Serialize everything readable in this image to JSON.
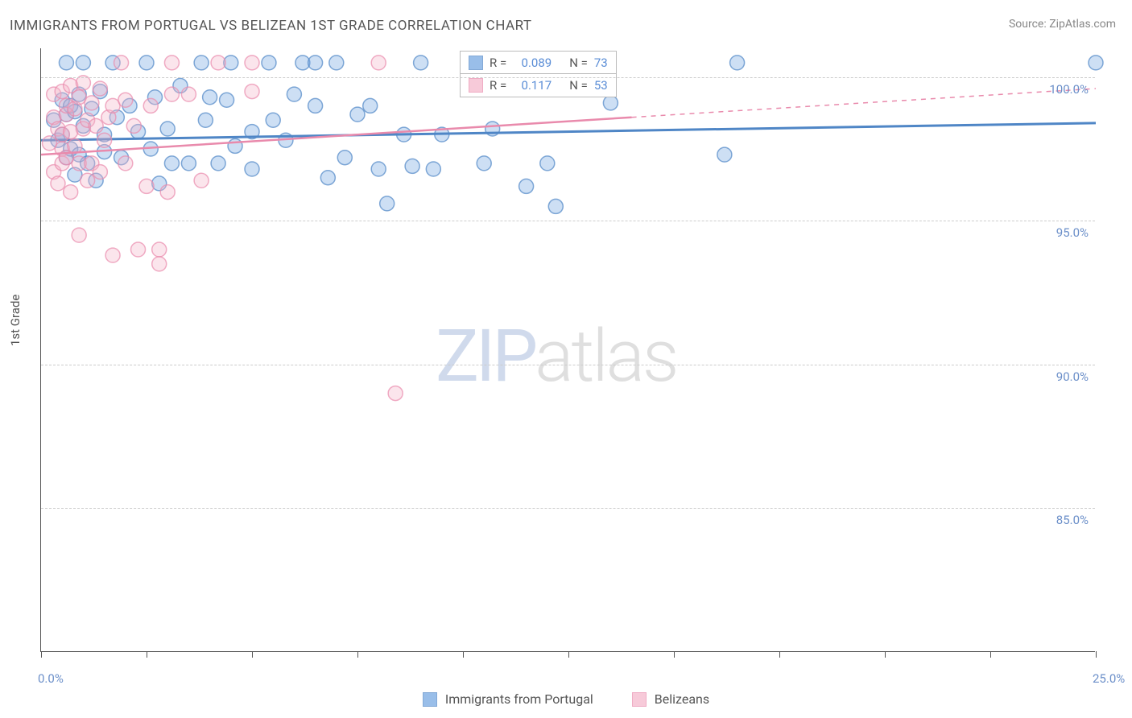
{
  "title": "IMMIGRANTS FROM PORTUGAL VS BELIZEAN 1ST GRADE CORRELATION CHART",
  "source": "Source: ZipAtlas.com",
  "y_axis_label": "1st Grade",
  "watermark": {
    "zip": "ZIP",
    "atlas": "atlas"
  },
  "chart": {
    "type": "scatter",
    "xlim": [
      0,
      25
    ],
    "ylim": [
      80,
      101
    ],
    "x_ticks": [
      0,
      2.5,
      5,
      7.5,
      10,
      12.5,
      15,
      17.5,
      20,
      22.5,
      25
    ],
    "x_tick_labels": {
      "0": "0.0%",
      "25": "25.0%"
    },
    "y_gridlines": [
      85,
      90,
      95,
      100
    ],
    "y_tick_labels": {
      "85": "85.0%",
      "90": "90.0%",
      "95": "95.0%",
      "100": "100.0%"
    },
    "grid_color": "#cccccc",
    "axis_color": "#555555",
    "background_color": "#ffffff",
    "marker_radius": 9,
    "marker_fill_opacity": 0.35,
    "marker_stroke_opacity": 0.7,
    "marker_stroke_width": 1.5,
    "series": [
      {
        "name": "Immigrants from Portugal",
        "color": "#6fa3e0",
        "stroke": "#4f86c6",
        "R": "0.089",
        "N": "73",
        "trend": {
          "x1": 0,
          "y1": 97.8,
          "x2": 25,
          "y2": 98.4,
          "dash_start": 25,
          "stroke_width": 3
        },
        "points": [
          [
            0.3,
            98.5
          ],
          [
            0.4,
            97.8
          ],
          [
            0.5,
            99.2
          ],
          [
            0.5,
            98.0
          ],
          [
            0.6,
            97.2
          ],
          [
            0.6,
            100.5
          ],
          [
            0.6,
            98.7
          ],
          [
            0.7,
            99.0
          ],
          [
            0.7,
            97.5
          ],
          [
            0.8,
            98.8
          ],
          [
            0.8,
            96.6
          ],
          [
            0.9,
            99.4
          ],
          [
            0.9,
            97.3
          ],
          [
            1.0,
            98.3
          ],
          [
            1.0,
            100.5
          ],
          [
            1.1,
            97.0
          ],
          [
            1.2,
            98.9
          ],
          [
            1.3,
            96.4
          ],
          [
            1.4,
            99.5
          ],
          [
            1.5,
            98.0
          ],
          [
            1.5,
            97.4
          ],
          [
            1.7,
            100.5
          ],
          [
            1.8,
            98.6
          ],
          [
            1.9,
            97.2
          ],
          [
            2.1,
            99.0
          ],
          [
            2.3,
            98.1
          ],
          [
            2.5,
            100.5
          ],
          [
            2.6,
            97.5
          ],
          [
            2.7,
            99.3
          ],
          [
            2.8,
            96.3
          ],
          [
            3.0,
            98.2
          ],
          [
            3.1,
            97.0
          ],
          [
            3.3,
            99.7
          ],
          [
            3.5,
            97.0
          ],
          [
            3.8,
            100.5
          ],
          [
            3.9,
            98.5
          ],
          [
            4.0,
            99.3
          ],
          [
            4.2,
            97.0
          ],
          [
            4.4,
            99.2
          ],
          [
            4.5,
            100.5
          ],
          [
            4.6,
            97.6
          ],
          [
            5.0,
            96.8
          ],
          [
            5.0,
            98.1
          ],
          [
            5.4,
            100.5
          ],
          [
            5.5,
            98.5
          ],
          [
            5.8,
            97.8
          ],
          [
            6.0,
            99.4
          ],
          [
            6.2,
            100.5
          ],
          [
            6.5,
            99.0
          ],
          [
            6.5,
            100.5
          ],
          [
            6.8,
            96.5
          ],
          [
            7.0,
            100.5
          ],
          [
            7.2,
            97.2
          ],
          [
            7.5,
            98.7
          ],
          [
            7.8,
            99.0
          ],
          [
            8.0,
            96.8
          ],
          [
            8.2,
            95.6
          ],
          [
            8.6,
            98.0
          ],
          [
            8.8,
            96.9
          ],
          [
            9.0,
            100.5
          ],
          [
            9.3,
            96.8
          ],
          [
            9.5,
            98.0
          ],
          [
            10.5,
            97.0
          ],
          [
            10.7,
            98.2
          ],
          [
            11.5,
            96.2
          ],
          [
            12.0,
            97.0
          ],
          [
            12.2,
            95.5
          ],
          [
            12.9,
            100.5
          ],
          [
            13.2,
            100.5
          ],
          [
            13.5,
            99.1
          ],
          [
            16.2,
            97.3
          ],
          [
            16.5,
            100.5
          ],
          [
            25.0,
            100.5
          ]
        ]
      },
      {
        "name": "Belizeans",
        "color": "#f4b5c9",
        "stroke": "#e98aac",
        "R": "0.117",
        "N": "53",
        "trend": {
          "x1": 0,
          "y1": 97.3,
          "x2": 14,
          "y2": 98.6,
          "dash_start": 14,
          "dash_x2": 25,
          "dash_y2": 99.6,
          "stroke_width": 2.5
        },
        "points": [
          [
            0.2,
            97.7
          ],
          [
            0.3,
            98.6
          ],
          [
            0.3,
            96.7
          ],
          [
            0.3,
            99.4
          ],
          [
            0.4,
            98.2
          ],
          [
            0.4,
            96.3
          ],
          [
            0.5,
            97.5
          ],
          [
            0.5,
            99.5
          ],
          [
            0.5,
            98.0
          ],
          [
            0.5,
            97.0
          ],
          [
            0.6,
            98.7
          ],
          [
            0.6,
            99.0
          ],
          [
            0.6,
            97.2
          ],
          [
            0.7,
            99.7
          ],
          [
            0.7,
            98.1
          ],
          [
            0.7,
            96.0
          ],
          [
            0.8,
            97.6
          ],
          [
            0.8,
            98.9
          ],
          [
            0.9,
            97.0
          ],
          [
            0.9,
            99.3
          ],
          [
            0.9,
            94.5
          ],
          [
            1.0,
            98.2
          ],
          [
            1.0,
            99.8
          ],
          [
            1.1,
            96.4
          ],
          [
            1.1,
            98.5
          ],
          [
            1.2,
            97.0
          ],
          [
            1.2,
            99.1
          ],
          [
            1.3,
            98.3
          ],
          [
            1.4,
            96.7
          ],
          [
            1.4,
            99.6
          ],
          [
            1.5,
            97.8
          ],
          [
            1.6,
            98.6
          ],
          [
            1.7,
            99.0
          ],
          [
            1.7,
            93.8
          ],
          [
            1.9,
            100.5
          ],
          [
            2.0,
            99.2
          ],
          [
            2.0,
            97.0
          ],
          [
            2.2,
            98.3
          ],
          [
            2.3,
            94.0
          ],
          [
            2.5,
            96.2
          ],
          [
            2.6,
            99.0
          ],
          [
            2.8,
            94.0
          ],
          [
            2.8,
            93.5
          ],
          [
            3.0,
            96.0
          ],
          [
            3.1,
            99.4
          ],
          [
            3.1,
            100.5
          ],
          [
            3.5,
            99.4
          ],
          [
            3.8,
            96.4
          ],
          [
            4.2,
            100.5
          ],
          [
            5.0,
            100.5
          ],
          [
            5.0,
            99.5
          ],
          [
            8.0,
            100.5
          ],
          [
            8.4,
            89.0
          ]
        ]
      }
    ]
  },
  "legend_top": {
    "rows": [
      {
        "series_idx": 0,
        "r_label": "R =",
        "n_label": "N ="
      },
      {
        "series_idx": 1,
        "r_label": "R =",
        "n_label": "N ="
      }
    ]
  },
  "legend_bottom": {
    "items": [
      {
        "series_idx": 0
      },
      {
        "series_idx": 1
      }
    ]
  }
}
